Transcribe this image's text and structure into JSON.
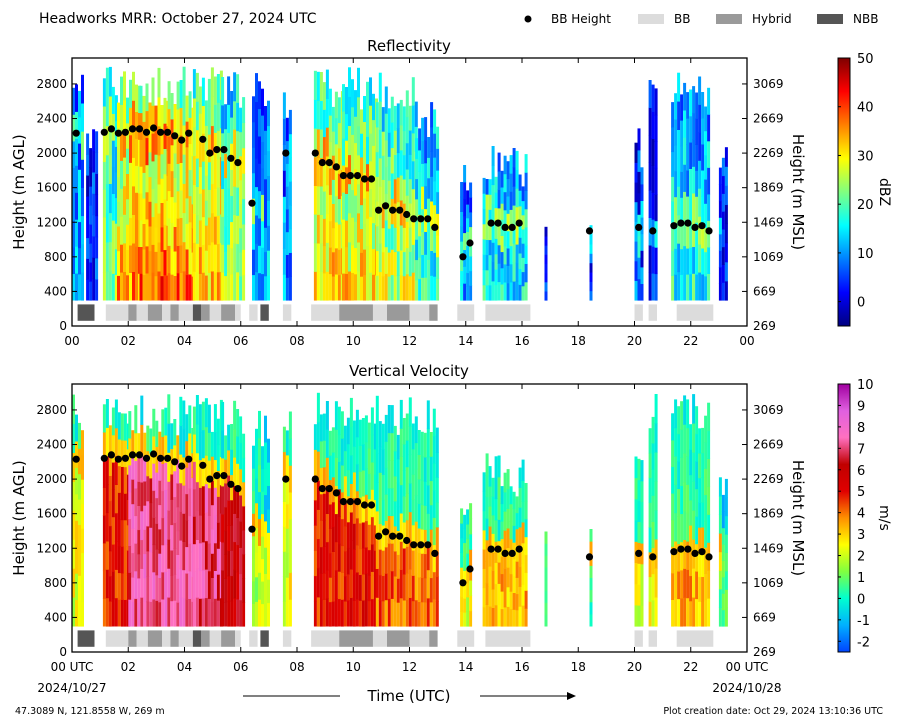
{
  "header": {
    "title": "Headworks MRR:  October 27, 2024 UTC",
    "legend": [
      {
        "label": "BB Height",
        "kind": "dot",
        "color": "#000000"
      },
      {
        "label": "BB",
        "kind": "box",
        "color": "#dcdcdc"
      },
      {
        "label": "Hybrid",
        "kind": "box",
        "color": "#9a9a9a"
      },
      {
        "label": "NBB",
        "kind": "box",
        "color": "#555555"
      }
    ]
  },
  "x_axis": {
    "label": "Time (UTC)",
    "tick_labels": [
      "00",
      "02",
      "04",
      "06",
      "08",
      "10",
      "12",
      "14",
      "16",
      "18",
      "20",
      "22",
      "00"
    ],
    "bottom_tick_labels": [
      "00 UTC",
      "02",
      "04",
      "06",
      "08",
      "10",
      "12",
      "14",
      "16",
      "18",
      "20",
      "22",
      "00 UTC"
    ],
    "start_date": "2024/10/27",
    "end_date": "2024/10/28"
  },
  "footer": {
    "location": "47.3089 N, 121.8558 W, 269 m",
    "creation": "Plot creation date: Oct 29, 2024 13:10:36 UTC"
  },
  "chart_data": [
    {
      "type": "heatmap",
      "title": "Reflectivity",
      "ylabel": "Height (m AGL)",
      "ylabel_right": "Height (m MSL)",
      "xlim": [
        0,
        24
      ],
      "ylim": [
        0,
        3100
      ],
      "y_ticks": [
        0,
        400,
        800,
        1200,
        1600,
        2000,
        2400,
        2800
      ],
      "y_ticks_right": [
        "269",
        "669",
        "1069",
        "1469",
        "1869",
        "2269",
        "2669",
        "3069"
      ],
      "colorbar": {
        "label": "dBZ",
        "min": -5,
        "max": 50,
        "ticks": [
          0,
          10,
          20,
          30,
          40,
          50
        ],
        "colors": [
          "#00007f",
          "#0000ff",
          "#0080ff",
          "#00ffff",
          "#80ff80",
          "#ffff00",
          "#ff8000",
          "#ff0000",
          "#7f0000"
        ]
      },
      "echo_profiles": [
        {
          "x": [
            0,
            0.4
          ],
          "top": 3000,
          "intensity": 0.35
        },
        {
          "x": [
            0.5,
            0.9
          ],
          "top": 2500,
          "intensity": 0.2
        },
        {
          "x": [
            1.1,
            1.6
          ],
          "top": 3000,
          "intensity": 0.55
        },
        {
          "x": [
            1.6,
            2.4
          ],
          "top": 3000,
          "intensity": 0.8
        },
        {
          "x": [
            2.4,
            3.4
          ],
          "top": 3000,
          "intensity": 0.85
        },
        {
          "x": [
            3.4,
            4.3
          ],
          "top": 3000,
          "intensity": 0.82
        },
        {
          "x": [
            4.3,
            5.3
          ],
          "top": 3000,
          "intensity": 0.75
        },
        {
          "x": [
            5.3,
            6.1
          ],
          "top": 3000,
          "intensity": 0.6
        },
        {
          "x": [
            6.4,
            7.0
          ],
          "top": 3000,
          "intensity": 0.35
        },
        {
          "x": [
            7.5,
            7.8
          ],
          "top": 2900,
          "intensity": 0.3
        },
        {
          "x": [
            8.6,
            9.6
          ],
          "top": 3000,
          "intensity": 0.72
        },
        {
          "x": [
            9.6,
            10.8
          ],
          "top": 3000,
          "intensity": 0.7
        },
        {
          "x": [
            10.8,
            12.2
          ],
          "top": 3000,
          "intensity": 0.62
        },
        {
          "x": [
            12.2,
            13.0
          ],
          "top": 2600,
          "intensity": 0.45
        },
        {
          "x": [
            13.8,
            14.2
          ],
          "top": 1900,
          "intensity": 0.3
        },
        {
          "x": [
            14.6,
            16.2
          ],
          "top": 2100,
          "intensity": 0.4
        },
        {
          "x": [
            16.8,
            16.9
          ],
          "top": 1500,
          "intensity": 0.2
        },
        {
          "x": [
            18.4,
            18.5
          ],
          "top": 1500,
          "intensity": 0.2
        },
        {
          "x": [
            20.0,
            20.3
          ],
          "top": 2300,
          "intensity": 0.22
        },
        {
          "x": [
            20.5,
            20.8
          ],
          "top": 3000,
          "intensity": 0.2
        },
        {
          "x": [
            21.3,
            22.6
          ],
          "top": 3000,
          "intensity": 0.42
        },
        {
          "x": [
            23.0,
            23.3
          ],
          "top": 2100,
          "intensity": 0.2
        }
      ],
      "bb_height": [
        [
          0.15,
          2230
        ],
        [
          1.15,
          2240
        ],
        [
          1.4,
          2280
        ],
        [
          1.65,
          2230
        ],
        [
          1.9,
          2240
        ],
        [
          2.15,
          2280
        ],
        [
          2.4,
          2280
        ],
        [
          2.65,
          2240
        ],
        [
          2.9,
          2290
        ],
        [
          3.15,
          2240
        ],
        [
          3.4,
          2240
        ],
        [
          3.65,
          2200
        ],
        [
          3.9,
          2150
        ],
        [
          4.15,
          2230
        ],
        [
          4.65,
          2160
        ],
        [
          4.9,
          2000
        ],
        [
          5.15,
          2040
        ],
        [
          5.4,
          2040
        ],
        [
          5.65,
          1940
        ],
        [
          5.9,
          1890
        ],
        [
          6.4,
          1420
        ],
        [
          7.6,
          2000
        ],
        [
          8.65,
          2000
        ],
        [
          8.9,
          1890
        ],
        [
          9.15,
          1890
        ],
        [
          9.4,
          1840
        ],
        [
          9.65,
          1740
        ],
        [
          9.9,
          1740
        ],
        [
          10.15,
          1740
        ],
        [
          10.4,
          1700
        ],
        [
          10.65,
          1700
        ],
        [
          10.9,
          1340
        ],
        [
          11.15,
          1390
        ],
        [
          11.4,
          1340
        ],
        [
          11.65,
          1340
        ],
        [
          11.9,
          1290
        ],
        [
          12.15,
          1240
        ],
        [
          12.4,
          1240
        ],
        [
          12.65,
          1240
        ],
        [
          12.9,
          1140
        ],
        [
          13.9,
          800
        ],
        [
          14.15,
          960
        ],
        [
          14.9,
          1190
        ],
        [
          15.15,
          1190
        ],
        [
          15.4,
          1140
        ],
        [
          15.65,
          1140
        ],
        [
          15.9,
          1190
        ],
        [
          18.4,
          1100
        ],
        [
          20.15,
          1140
        ],
        [
          20.65,
          1100
        ],
        [
          21.4,
          1160
        ],
        [
          21.65,
          1190
        ],
        [
          21.9,
          1190
        ],
        [
          22.15,
          1140
        ],
        [
          22.4,
          1160
        ],
        [
          22.65,
          1100
        ]
      ],
      "bb_types": [
        {
          "x": [
            0.2,
            0.8
          ],
          "type": "NBB"
        },
        {
          "x": [
            1.2,
            2.0
          ],
          "type": "BB"
        },
        {
          "x": [
            2.0,
            2.3
          ],
          "type": "Hybrid"
        },
        {
          "x": [
            2.3,
            2.7
          ],
          "type": "BB"
        },
        {
          "x": [
            2.7,
            3.2
          ],
          "type": "Hybrid"
        },
        {
          "x": [
            3.2,
            3.5
          ],
          "type": "BB"
        },
        {
          "x": [
            3.5,
            3.8
          ],
          "type": "Hybrid"
        },
        {
          "x": [
            3.8,
            4.3
          ],
          "type": "BB"
        },
        {
          "x": [
            4.3,
            4.6
          ],
          "type": "NBB"
        },
        {
          "x": [
            4.6,
            4.9
          ],
          "type": "Hybrid"
        },
        {
          "x": [
            4.9,
            5.3
          ],
          "type": "BB"
        },
        {
          "x": [
            5.3,
            5.8
          ],
          "type": "Hybrid"
        },
        {
          "x": [
            5.8,
            6.0
          ],
          "type": "BB"
        },
        {
          "x": [
            6.3,
            6.6
          ],
          "type": "BB"
        },
        {
          "x": [
            6.7,
            7.0
          ],
          "type": "NBB"
        },
        {
          "x": [
            7.5,
            7.8
          ],
          "type": "BB"
        },
        {
          "x": [
            8.5,
            9.5
          ],
          "type": "BB"
        },
        {
          "x": [
            9.5,
            10.7
          ],
          "type": "Hybrid"
        },
        {
          "x": [
            10.7,
            11.2
          ],
          "type": "BB"
        },
        {
          "x": [
            11.2,
            12.0
          ],
          "type": "Hybrid"
        },
        {
          "x": [
            12.0,
            12.7
          ],
          "type": "BB"
        },
        {
          "x": [
            12.7,
            13.0
          ],
          "type": "Hybrid"
        },
        {
          "x": [
            13.7,
            14.3
          ],
          "type": "BB"
        },
        {
          "x": [
            14.7,
            16.3
          ],
          "type": "BB"
        },
        {
          "x": [
            20.0,
            20.3
          ],
          "type": "BB"
        },
        {
          "x": [
            20.5,
            20.8
          ],
          "type": "BB"
        },
        {
          "x": [
            21.5,
            22.8
          ],
          "type": "BB"
        }
      ]
    },
    {
      "type": "heatmap",
      "title": "Vertical Velocity",
      "ylabel": "Height (m AGL)",
      "ylabel_right": "Height (m MSL)",
      "xlim": [
        0,
        24
      ],
      "ylim": [
        0,
        3100
      ],
      "y_ticks": [
        0,
        400,
        800,
        1200,
        1600,
        2000,
        2400,
        2800
      ],
      "y_ticks_right": [
        "269",
        "669",
        "1069",
        "1469",
        "1869",
        "2269",
        "2669",
        "3069"
      ],
      "colorbar": {
        "label": "m/s",
        "min": -2.5,
        "max": 10,
        "ticks": [
          -2,
          -1,
          0,
          1,
          2,
          3,
          4,
          5,
          6,
          7,
          8,
          9,
          10
        ],
        "colors": [
          "#0044ff",
          "#00b0ff",
          "#00ffd0",
          "#80ff40",
          "#ffff00",
          "#ff9000",
          "#e00000",
          "#c00000",
          "#ff70c0",
          "#e060e0",
          "#a000a0"
        ]
      },
      "echo_profiles": [
        {
          "x": [
            0,
            0.4
          ],
          "top": 3000,
          "intensity": 0.45
        },
        {
          "x": [
            1.1,
            2.0
          ],
          "top": 3000,
          "intensity": 0.7
        },
        {
          "x": [
            2.0,
            4.3
          ],
          "top": 3000,
          "intensity": 0.92
        },
        {
          "x": [
            4.3,
            5.3
          ],
          "top": 3000,
          "intensity": 0.9
        },
        {
          "x": [
            5.3,
            6.1
          ],
          "top": 3000,
          "intensity": 0.8
        },
        {
          "x": [
            6.4,
            7.0
          ],
          "top": 2800,
          "intensity": 0.4
        },
        {
          "x": [
            7.5,
            7.8
          ],
          "top": 3000,
          "intensity": 0.45
        },
        {
          "x": [
            8.6,
            10.8
          ],
          "top": 3000,
          "intensity": 0.7
        },
        {
          "x": [
            10.8,
            13.0
          ],
          "top": 3000,
          "intensity": 0.62
        },
        {
          "x": [
            13.8,
            14.2
          ],
          "top": 1900,
          "intensity": 0.45
        },
        {
          "x": [
            14.6,
            16.2
          ],
          "top": 2300,
          "intensity": 0.55
        },
        {
          "x": [
            16.8,
            16.9
          ],
          "top": 1500,
          "intensity": 0.3
        },
        {
          "x": [
            18.4,
            18.5
          ],
          "top": 1500,
          "intensity": 0.3
        },
        {
          "x": [
            20.0,
            20.3
          ],
          "top": 2500,
          "intensity": 0.45
        },
        {
          "x": [
            20.5,
            20.8
          ],
          "top": 3000,
          "intensity": 0.45
        },
        {
          "x": [
            21.3,
            22.6
          ],
          "top": 3000,
          "intensity": 0.55
        },
        {
          "x": [
            23.0,
            23.3
          ],
          "top": 2100,
          "intensity": 0.3
        }
      ]
    }
  ]
}
